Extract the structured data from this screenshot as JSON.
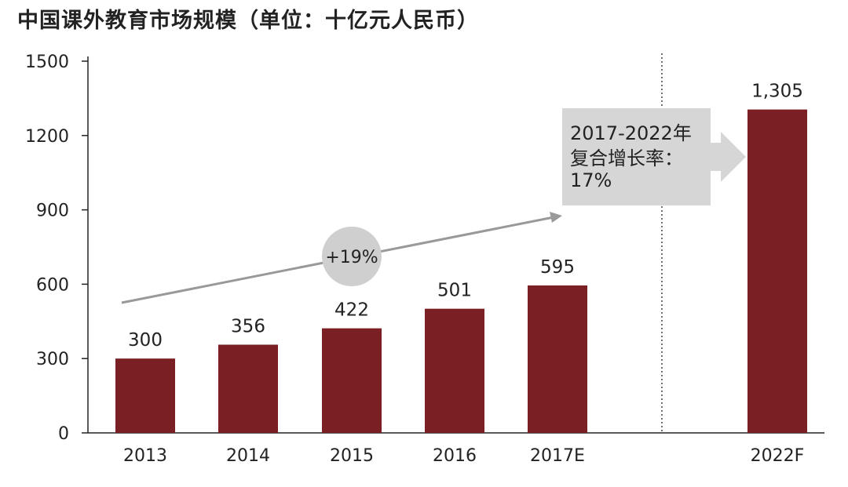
{
  "chart_data": {
    "type": "bar",
    "title": "中国课外教育市场规模（单位：十亿元人民币）",
    "categories": [
      "2013",
      "2014",
      "2015",
      "2016",
      "2017E",
      "2022F"
    ],
    "values": [
      300,
      356,
      422,
      501,
      595,
      1305
    ],
    "data_labels": [
      "300",
      "356",
      "422",
      "501",
      "595",
      "1,305"
    ],
    "ylim": [
      0,
      1500
    ],
    "yticks": [
      "0",
      "300",
      "600",
      "900",
      "1200",
      "1500"
    ],
    "grid": false,
    "bar_color": "#7a1f24",
    "annotations": {
      "growth_bubble": "+19%",
      "cagr_line1": "2017-2022年",
      "cagr_line2": "复合增长率：",
      "cagr_line3": "17%"
    }
  }
}
